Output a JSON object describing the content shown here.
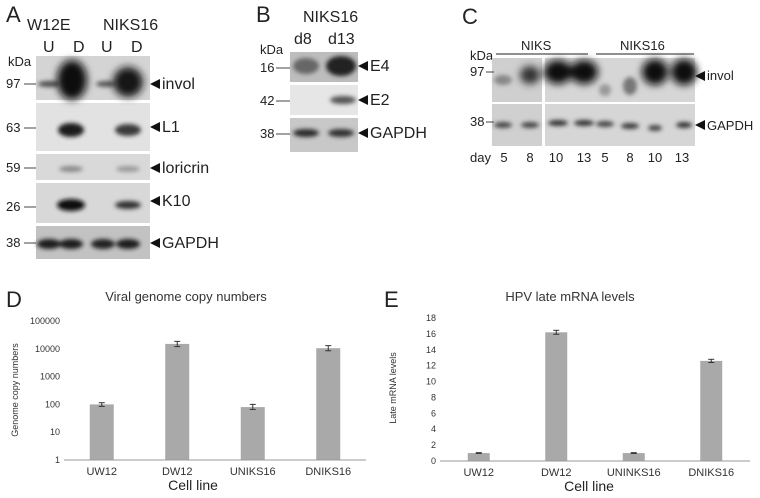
{
  "panels": {
    "a": "A",
    "b": "B",
    "c": "C",
    "d": "D",
    "e": "E"
  },
  "panel_a": {
    "group_labels": [
      "W12E",
      "NIKS16"
    ],
    "lane_labels": [
      "U",
      "D",
      "U",
      "D"
    ],
    "kda_label": "kDa",
    "markers": [
      "97",
      "63",
      "59",
      "26",
      "38"
    ],
    "bands": [
      "invol",
      "L1",
      "loricrin",
      "K10",
      "GAPDH"
    ]
  },
  "panel_b": {
    "title": "NIKS16",
    "kda_label": "kDa",
    "lane_labels": [
      "d8",
      "d13"
    ],
    "markers": [
      "16",
      "42",
      "38"
    ],
    "bands": [
      "E4",
      "E2",
      "GAPDH"
    ]
  },
  "panel_c": {
    "kda_label": "kDa",
    "group_labels": [
      "NIKS",
      "NIKS16"
    ],
    "markers": [
      "97",
      "38"
    ],
    "bands": [
      "invol",
      "GAPDH"
    ],
    "day_label": "day",
    "days": [
      "5",
      "8",
      "10",
      "13",
      "5",
      "8",
      "10",
      "13"
    ]
  },
  "chart_data": [
    {
      "type": "bar",
      "title": "Viral genome copy numbers",
      "xlabel": "Cell line",
      "ylabel": "Genome copy numbers",
      "yscale": "log",
      "ylim": [
        1,
        100000
      ],
      "yticks": [
        "1",
        "10",
        "100",
        "1000",
        "10000",
        "100000"
      ],
      "categories": [
        "UW12",
        "DW12",
        "UNIKS16",
        "DNIKS16"
      ],
      "values": [
        100,
        15000,
        80,
        10500
      ],
      "errors_low": [
        85,
        12000,
        66,
        8500
      ],
      "errors_high": [
        115,
        18500,
        100,
        13000
      ],
      "bar_color": "#a9a9a9",
      "grid": false,
      "legend": "none"
    },
    {
      "type": "bar",
      "title": "HPV late mRNA levels",
      "xlabel": "Cell line",
      "ylabel": "Late mRNA levels",
      "yscale": "linear",
      "ylim": [
        0,
        18
      ],
      "yticks": [
        "0",
        "2",
        "4",
        "6",
        "8",
        "10",
        "12",
        "14",
        "16",
        "18"
      ],
      "categories": [
        "UW12",
        "DW12",
        "UNINKS16",
        "DNIKS16"
      ],
      "values": [
        1.0,
        16.2,
        1.0,
        12.6
      ],
      "errors": [
        0.05,
        0.25,
        0.05,
        0.2
      ],
      "bar_color": "#a9a9a9",
      "grid": false,
      "legend": "none"
    }
  ]
}
